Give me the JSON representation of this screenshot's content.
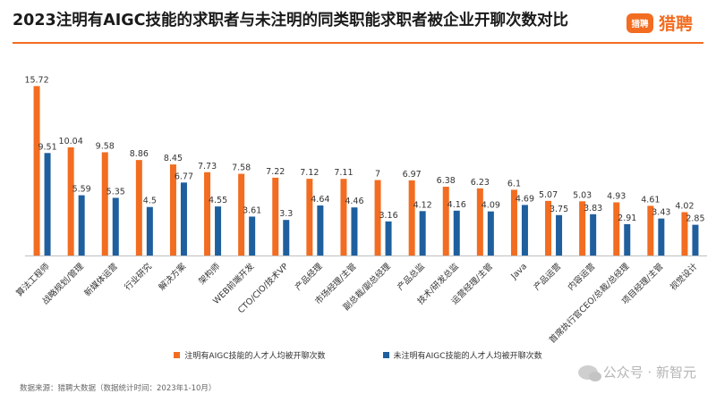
{
  "header": {
    "title": "2023注明有AIGC技能的求职者与未注明的同类职能求职者被企业开聊次数对比",
    "brand_icon_text": "猎聘",
    "brand_name": "猎聘",
    "brand_color": "#f26d21"
  },
  "chart_data": {
    "type": "bar",
    "categories": [
      "算法工程师",
      "战略规划/管理",
      "新媒体运营",
      "行业研究",
      "解决方案",
      "架构师",
      "WEB前端开发",
      "CTO/CIO/技术VP",
      "产品经理",
      "市场经理/主管",
      "副总裁/副总经理",
      "产品总监",
      "技术/研发总监",
      "运营经理/主管",
      "Java",
      "产品运营",
      "内容运营",
      "首席执行官CEO/总裁/总经理",
      "项目经理/主管",
      "视觉设计"
    ],
    "series": [
      {
        "name": "注明有AIGC技能的人才人均被开聊次数",
        "color": "#f26d21",
        "values": [
          15.72,
          10.04,
          9.58,
          8.86,
          8.45,
          7.73,
          7.58,
          7.22,
          7.12,
          7.11,
          7,
          6.97,
          6.38,
          6.23,
          6.1,
          5.07,
          5.03,
          4.93,
          4.61,
          4.02
        ]
      },
      {
        "name": "未注明有AIGC技能的人才人均被开聊次数",
        "color": "#1f5f9e",
        "values": [
          9.51,
          5.59,
          5.35,
          4.5,
          6.77,
          4.55,
          3.61,
          3.3,
          4.64,
          4.46,
          3.16,
          4.12,
          4.16,
          4.09,
          4.69,
          3.75,
          3.83,
          2.91,
          3.43,
          2.85
        ]
      }
    ],
    "ylim": [
      0,
      16
    ],
    "grid": false,
    "legend_position": "bottom"
  },
  "footer": {
    "source": "数据来源：猎聘大数据（数据统计时间：2023年1-10月）",
    "watermark": "公众号 · 新智元"
  }
}
